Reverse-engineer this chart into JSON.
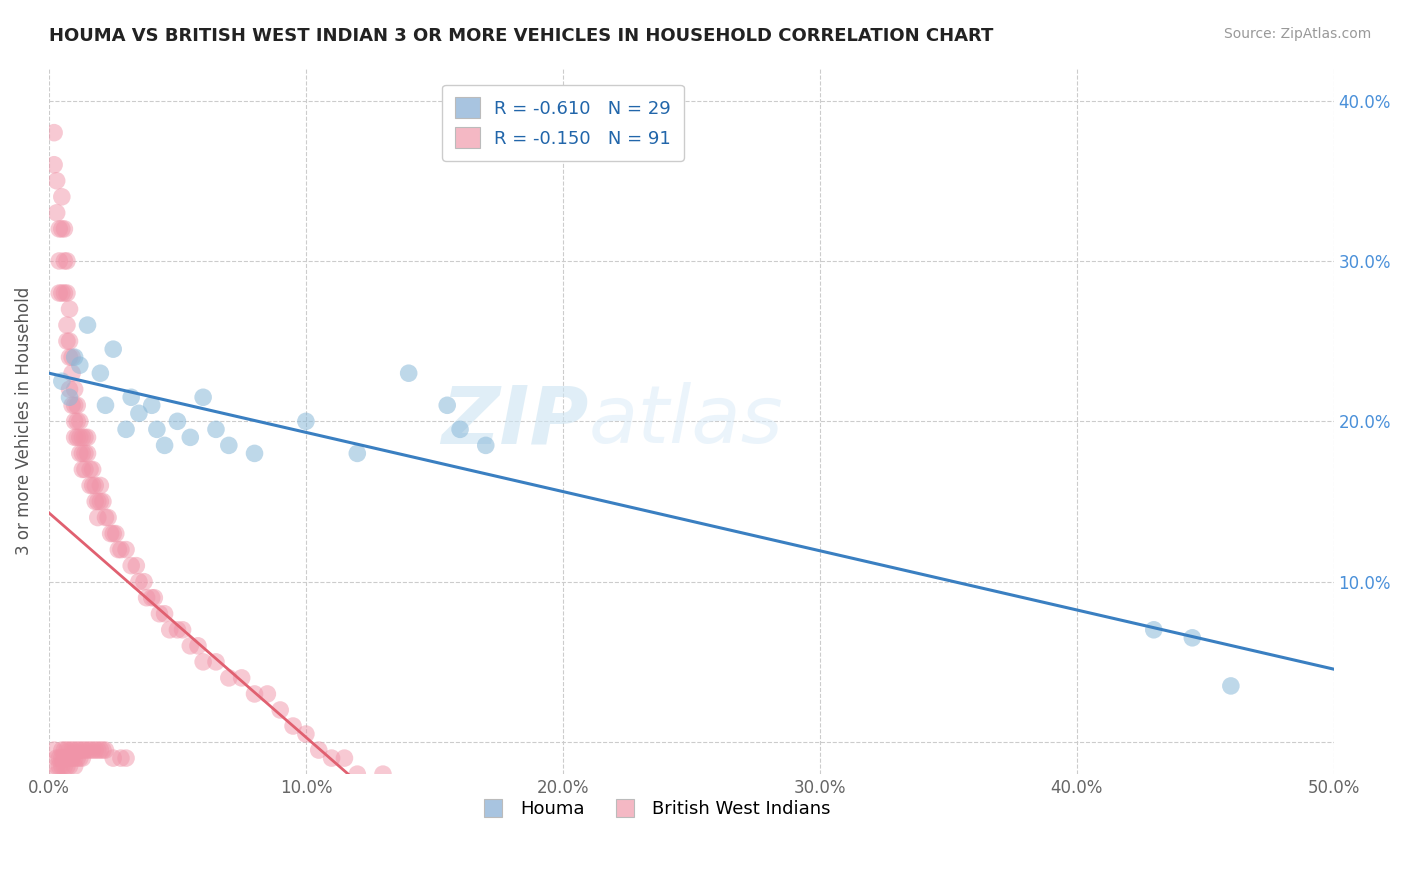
{
  "title": "HOUMA VS BRITISH WEST INDIAN 3 OR MORE VEHICLES IN HOUSEHOLD CORRELATION CHART",
  "source": "Source: ZipAtlas.com",
  "ylabel": "3 or more Vehicles in Household",
  "xlim": [
    0.0,
    0.5
  ],
  "ylim": [
    -0.02,
    0.42
  ],
  "xticks": [
    0.0,
    0.1,
    0.2,
    0.3,
    0.4,
    0.5
  ],
  "yticks": [
    0.0,
    0.1,
    0.2,
    0.3,
    0.4
  ],
  "xtick_labels": [
    "0.0%",
    "10.0%",
    "20.0%",
    "30.0%",
    "40.0%",
    "50.0%"
  ],
  "ytick_labels_right": [
    "",
    "10.0%",
    "20.0%",
    "30.0%",
    "40.0%"
  ],
  "houma_R": -0.61,
  "houma_N": 29,
  "bwi_R": -0.15,
  "bwi_N": 91,
  "houma_color": "#a8c4e0",
  "bwi_color": "#f4b8c4",
  "houma_scatter_color": "#89b8d8",
  "bwi_scatter_color": "#f094a8",
  "trend_houma_color": "#3a7fc1",
  "trend_bwi_color": "#e06070",
  "watermark_zip": "ZIP",
  "watermark_atlas": "atlas",
  "houma_x": [
    0.005,
    0.008,
    0.01,
    0.012,
    0.015,
    0.02,
    0.022,
    0.025,
    0.03,
    0.032,
    0.035,
    0.04,
    0.042,
    0.045,
    0.05,
    0.055,
    0.06,
    0.065,
    0.07,
    0.08,
    0.1,
    0.12,
    0.14,
    0.155,
    0.16,
    0.17,
    0.43,
    0.445,
    0.46
  ],
  "houma_y": [
    0.225,
    0.215,
    0.24,
    0.235,
    0.26,
    0.23,
    0.21,
    0.245,
    0.195,
    0.215,
    0.205,
    0.21,
    0.195,
    0.185,
    0.2,
    0.19,
    0.215,
    0.195,
    0.185,
    0.18,
    0.2,
    0.18,
    0.23,
    0.21,
    0.195,
    0.185,
    0.07,
    0.065,
    0.035
  ],
  "bwi_x": [
    0.002,
    0.002,
    0.003,
    0.003,
    0.004,
    0.004,
    0.004,
    0.005,
    0.005,
    0.005,
    0.006,
    0.006,
    0.006,
    0.007,
    0.007,
    0.007,
    0.007,
    0.008,
    0.008,
    0.008,
    0.008,
    0.009,
    0.009,
    0.009,
    0.01,
    0.01,
    0.01,
    0.01,
    0.011,
    0.011,
    0.011,
    0.012,
    0.012,
    0.012,
    0.013,
    0.013,
    0.013,
    0.014,
    0.014,
    0.014,
    0.015,
    0.015,
    0.016,
    0.016,
    0.017,
    0.017,
    0.018,
    0.018,
    0.019,
    0.019,
    0.02,
    0.02,
    0.021,
    0.022,
    0.023,
    0.024,
    0.025,
    0.026,
    0.027,
    0.028,
    0.03,
    0.032,
    0.034,
    0.035,
    0.037,
    0.038,
    0.04,
    0.041,
    0.043,
    0.045,
    0.047,
    0.05,
    0.052,
    0.055,
    0.058,
    0.06,
    0.065,
    0.07,
    0.075,
    0.08,
    0.085,
    0.09,
    0.095,
    0.1,
    0.105,
    0.11,
    0.115,
    0.12,
    0.13,
    0.14,
    0.15
  ],
  "bwi_y": [
    0.36,
    0.38,
    0.35,
    0.33,
    0.32,
    0.3,
    0.28,
    0.34,
    0.32,
    0.28,
    0.32,
    0.3,
    0.28,
    0.3,
    0.28,
    0.26,
    0.25,
    0.27,
    0.25,
    0.24,
    0.22,
    0.24,
    0.23,
    0.21,
    0.22,
    0.21,
    0.2,
    0.19,
    0.21,
    0.2,
    0.19,
    0.2,
    0.19,
    0.18,
    0.19,
    0.18,
    0.17,
    0.19,
    0.18,
    0.17,
    0.19,
    0.18,
    0.17,
    0.16,
    0.17,
    0.16,
    0.16,
    0.15,
    0.15,
    0.14,
    0.16,
    0.15,
    0.15,
    0.14,
    0.14,
    0.13,
    0.13,
    0.13,
    0.12,
    0.12,
    0.12,
    0.11,
    0.11,
    0.1,
    0.1,
    0.09,
    0.09,
    0.09,
    0.08,
    0.08,
    0.07,
    0.07,
    0.07,
    0.06,
    0.06,
    0.05,
    0.05,
    0.04,
    0.04,
    0.03,
    0.03,
    0.02,
    0.01,
    0.005,
    -0.005,
    -0.01,
    -0.01,
    -0.02,
    -0.02,
    -0.03,
    -0.03
  ],
  "bwi_x_below": [
    0.002,
    0.003,
    0.003,
    0.003,
    0.004,
    0.004,
    0.005,
    0.005,
    0.005,
    0.006,
    0.006,
    0.006,
    0.007,
    0.007,
    0.007,
    0.008,
    0.008,
    0.008,
    0.009,
    0.009,
    0.01,
    0.01,
    0.01,
    0.011,
    0.011,
    0.012,
    0.012,
    0.013,
    0.013,
    0.014,
    0.015,
    0.016,
    0.017,
    0.018,
    0.019,
    0.02,
    0.021,
    0.022,
    0.025,
    0.028,
    0.03
  ],
  "bwi_y_below": [
    -0.005,
    -0.01,
    -0.015,
    -0.02,
    -0.01,
    -0.015,
    -0.005,
    -0.01,
    -0.015,
    -0.005,
    -0.01,
    -0.015,
    -0.005,
    -0.01,
    -0.015,
    -0.005,
    -0.01,
    -0.015,
    -0.005,
    -0.01,
    -0.005,
    -0.01,
    -0.015,
    -0.005,
    -0.01,
    -0.005,
    -0.01,
    -0.005,
    -0.01,
    -0.005,
    -0.005,
    -0.005,
    -0.005,
    -0.005,
    -0.005,
    -0.005,
    -0.005,
    -0.005,
    -0.01,
    -0.01,
    -0.01
  ]
}
